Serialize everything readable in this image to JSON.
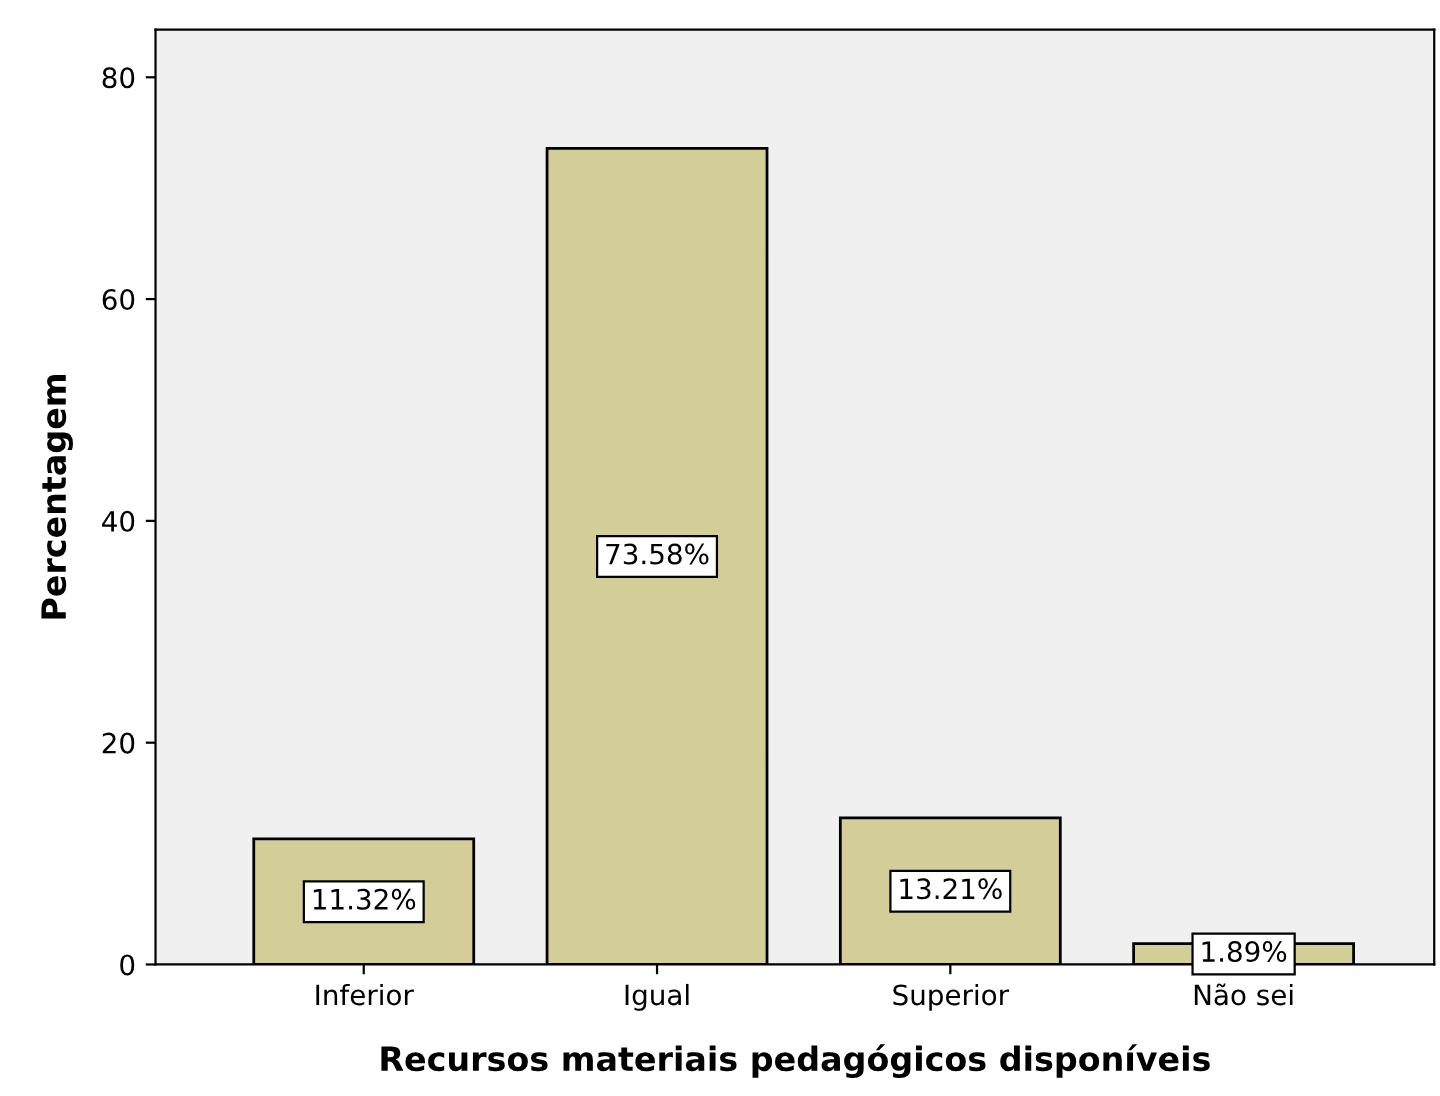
{
  "chart_data": {
    "type": "bar",
    "xlabel": "Recursos materiais pedagógicos disponíveis",
    "ylabel": "Percentagem",
    "categories": [
      "Inferior",
      "Igual",
      "Superior",
      "Não sei"
    ],
    "values": [
      11.32,
      73.58,
      13.21,
      1.89
    ],
    "value_labels": [
      "11.32%",
      "73.58%",
      "13.21%",
      "1.89%"
    ],
    "color": "#d3ce97",
    "ylim": [
      0,
      84.3
    ],
    "yticks": [
      0,
      20,
      40,
      60,
      80
    ],
    "grid": false,
    "legend": false
  }
}
